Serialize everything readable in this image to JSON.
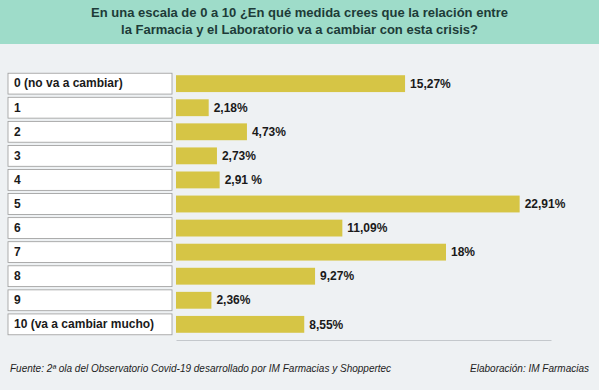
{
  "chart_data": {
    "type": "bar",
    "orientation": "horizontal",
    "title": [
      "En una escala de 0 a 10 ¿En qué medida crees que la relación entre",
      "la Farmacia y el Laboratorio va a cambiar con esta crisis?"
    ],
    "categories": [
      "0 (no va a cambiar)",
      "1",
      "2",
      "3",
      "4",
      "5",
      "6",
      "7",
      "8",
      "9",
      "10 (va a cambiar mucho)"
    ],
    "values": [
      15.27,
      2.18,
      4.73,
      2.73,
      2.91,
      22.91,
      11.09,
      18,
      9.27,
      2.36,
      8.55
    ],
    "value_labels": [
      "15,27%",
      "2,18%",
      "4,73%",
      "2,73%",
      "2,91 %",
      "22,91%",
      "11,09%",
      "18%",
      "9,27%",
      "2,36%",
      "8,55%"
    ],
    "data_labels": true,
    "color": "#d6c545",
    "xlim": [
      0,
      25
    ],
    "tick_labels": "y",
    "grid": false,
    "annotations": [
      "Fuente: 2ª ola del Observatorio Covid-19 desarrollado por IM Farmacias y Shoppertec",
      "Elaboración: IM Farmacias"
    ]
  }
}
